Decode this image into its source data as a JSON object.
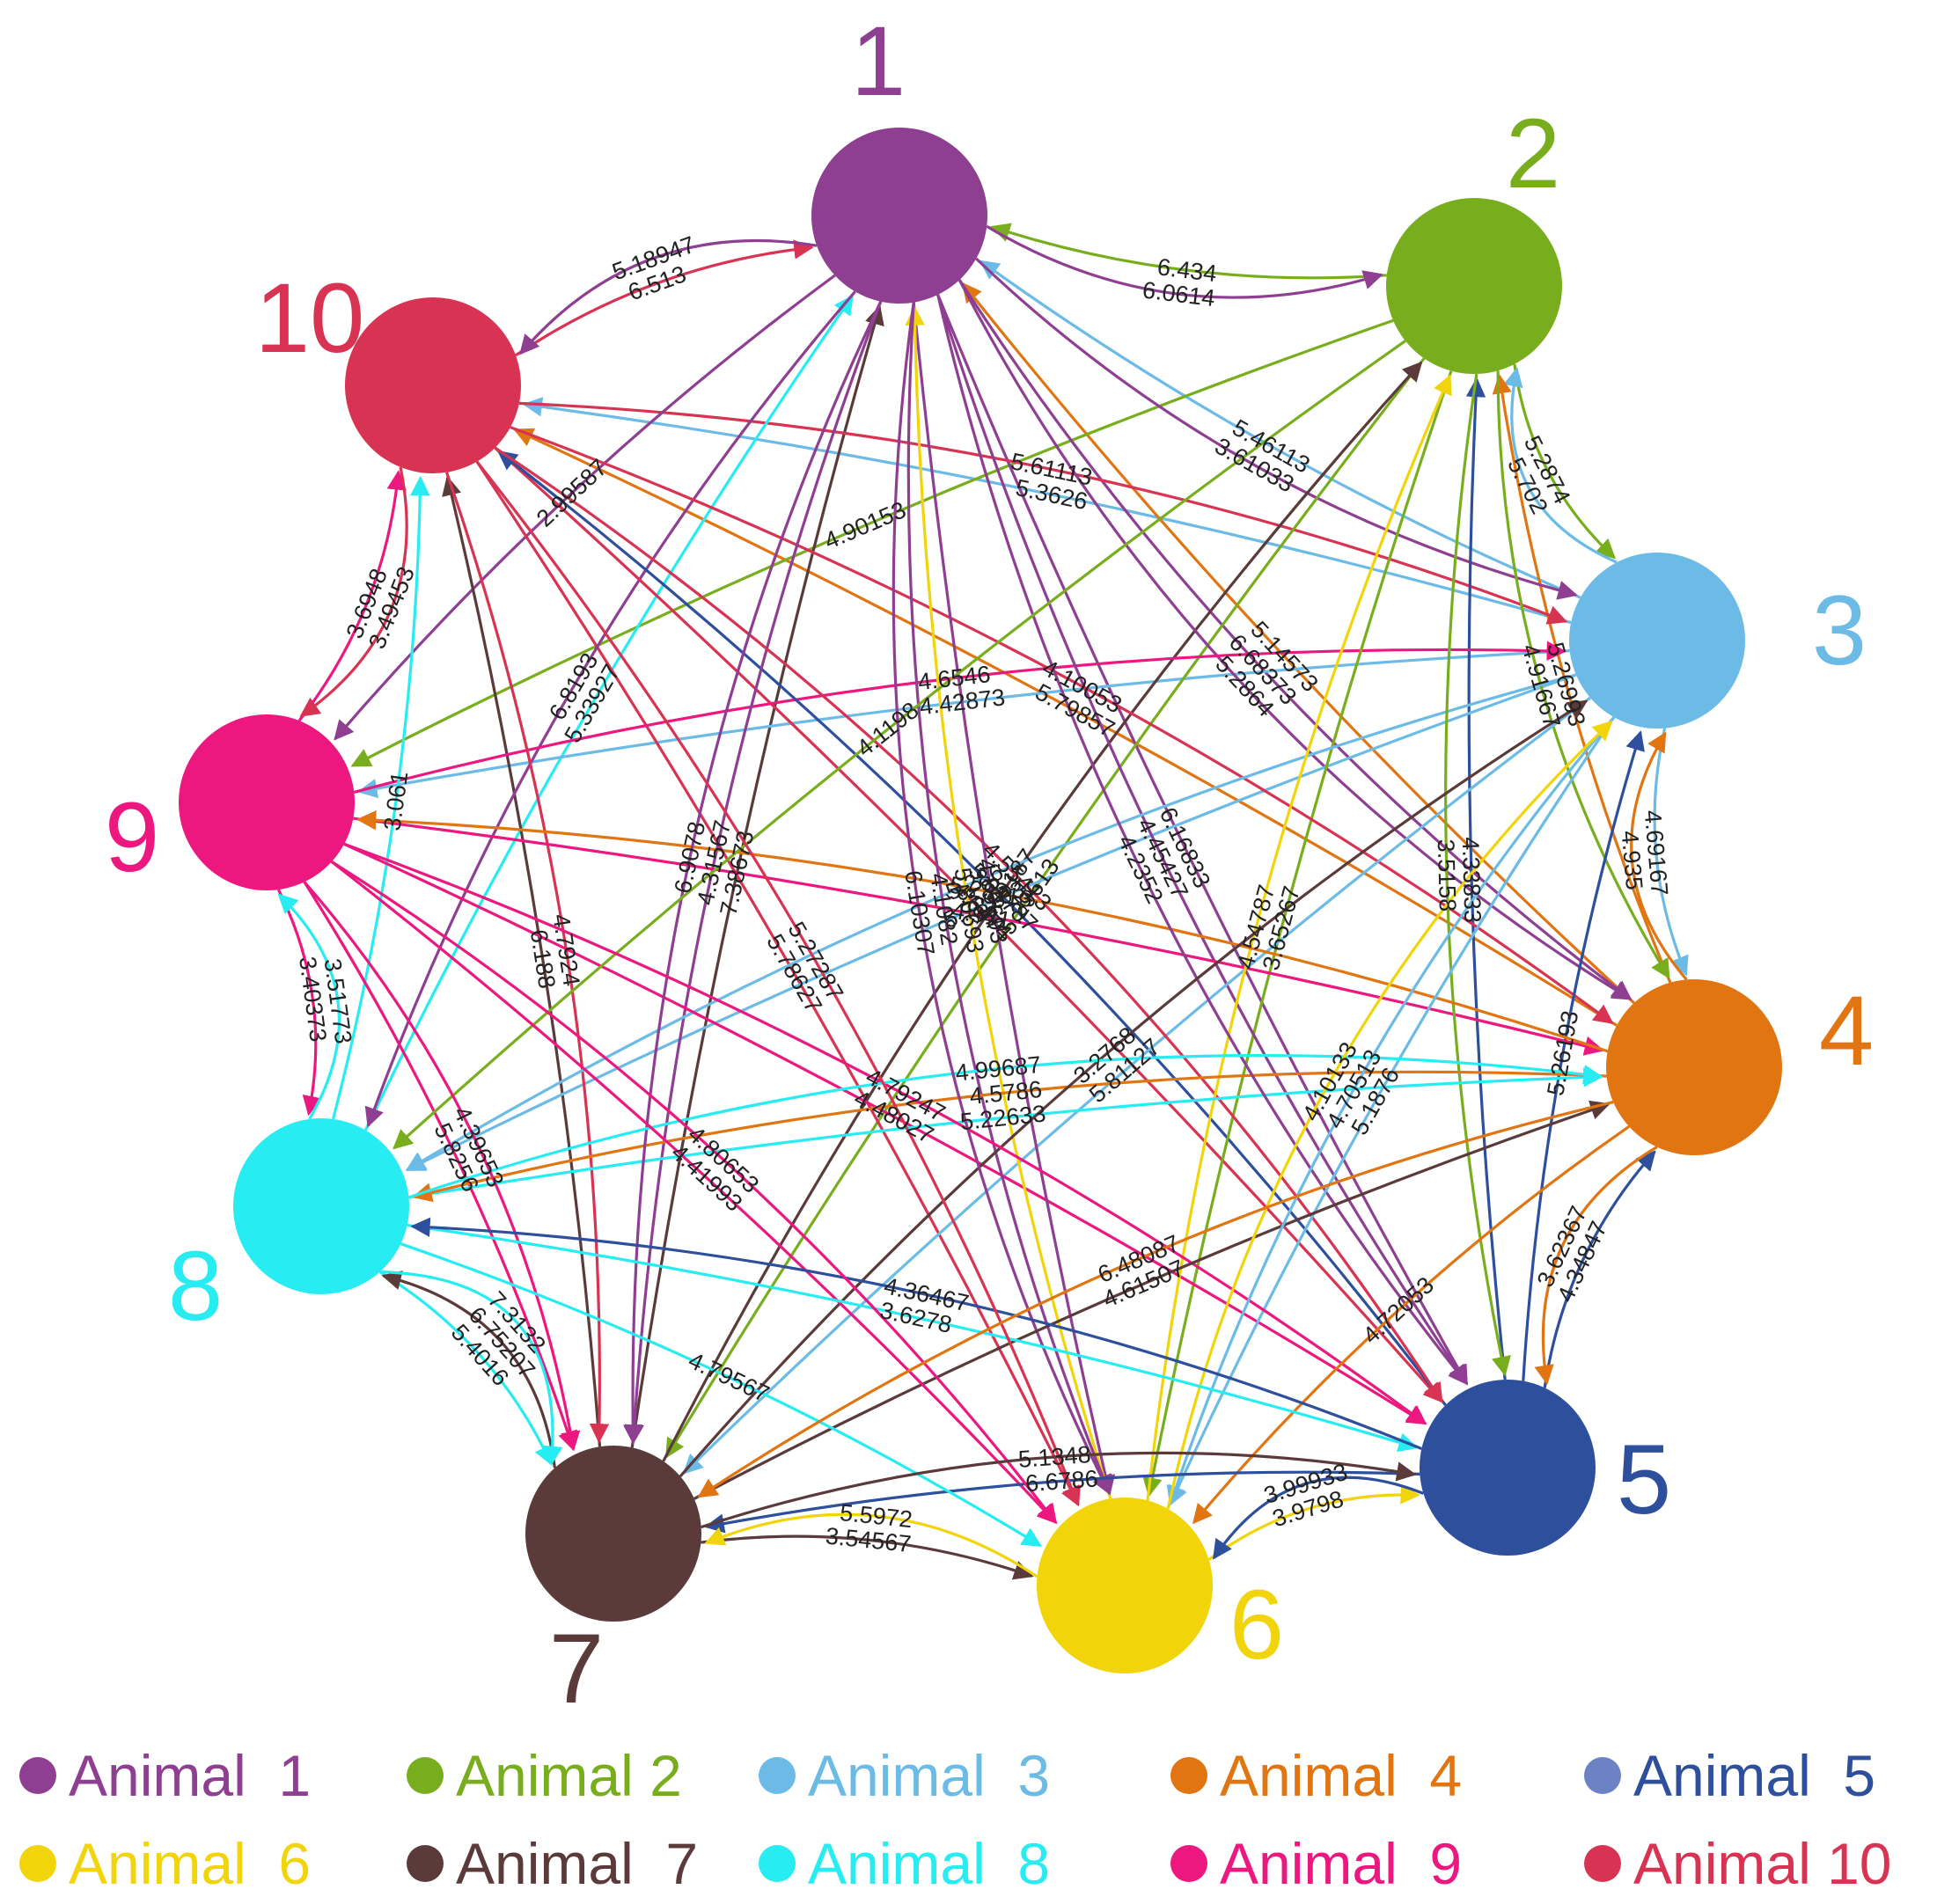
{
  "nodes": [
    {
      "id": 1,
      "label": "1",
      "color": "#8e3f91"
    },
    {
      "id": 2,
      "label": "2",
      "color": "#78ae1d"
    },
    {
      "id": 3,
      "label": "3",
      "color": "#6bbbe6"
    },
    {
      "id": 4,
      "label": "4",
      "color": "#e07512"
    },
    {
      "id": 5,
      "label": "5",
      "color": "#2d4f9c"
    },
    {
      "id": 6,
      "label": "6",
      "color": "#f1d40a"
    },
    {
      "id": 7,
      "label": "7",
      "color": "#5b3a3a"
    },
    {
      "id": 8,
      "label": "8",
      "color": "#27ecf2"
    },
    {
      "id": 9,
      "label": "9",
      "color": "#ec177f"
    },
    {
      "id": 10,
      "label": "10",
      "color": "#d83352"
    }
  ],
  "edges": [
    {
      "from": 2,
      "to": 1,
      "weight": "6.434"
    },
    {
      "from": 1,
      "to": 2,
      "weight": "6.0614"
    },
    {
      "from": 10,
      "to": 1,
      "weight": "6.513"
    },
    {
      "from": 1,
      "to": 10,
      "weight": "5.18947"
    },
    {
      "from": 3,
      "to": 10,
      "weight": "5.3626"
    },
    {
      "from": 4,
      "to": 1,
      "weight": "5.14573"
    },
    {
      "from": 3,
      "to": 1,
      "weight": "5.46113"
    },
    {
      "from": 2,
      "to": 3,
      "weight": "5.2874"
    },
    {
      "from": 3,
      "to": 2,
      "weight": "5.702"
    },
    {
      "from": 4,
      "to": 2,
      "weight": "5.26993"
    },
    {
      "from": 4,
      "to": 10,
      "weight": "5.79857"
    },
    {
      "from": 2,
      "to": 9,
      "weight": "4.90153"
    },
    {
      "from": 7,
      "to": 1,
      "weight": "7.38673"
    },
    {
      "from": 1,
      "to": 5,
      "weight": "6.16833"
    },
    {
      "from": 1,
      "to": 4,
      "weight": "6.68373"
    },
    {
      "from": 10,
      "to": 3,
      "weight": "5.61113"
    },
    {
      "from": 1,
      "to": 3,
      "weight": "3.61033"
    },
    {
      "from": 8,
      "to": 1,
      "weight": "5.33927"
    },
    {
      "from": 3,
      "to": 9,
      "weight": "4.42873"
    },
    {
      "from": 2,
      "to": 7,
      "weight": "5.29613"
    },
    {
      "from": 9,
      "to": 10,
      "weight": "3.6948"
    },
    {
      "from": 10,
      "to": 9,
      "weight": "3.49453"
    },
    {
      "from": 1,
      "to": 9,
      "weight": "2.99587"
    },
    {
      "from": 7,
      "to": 10,
      "weight": "6.188"
    },
    {
      "from": 10,
      "to": 6,
      "weight": "5.78627"
    },
    {
      "from": 1,
      "to": 8,
      "weight": "6.8193"
    },
    {
      "from": 10,
      "to": 5,
      "weight": "4.6474"
    },
    {
      "from": 7,
      "to": 2,
      "weight": "5.59187"
    },
    {
      "from": 1,
      "to": 4,
      "weight": "5.2864"
    },
    {
      "from": 5,
      "to": 2,
      "weight": "4.33833"
    },
    {
      "from": 3,
      "to": 8,
      "weight": "5.78193"
    },
    {
      "from": 9,
      "to": 3,
      "weight": "4.6546"
    },
    {
      "from": 5,
      "to": 10,
      "weight": "5.04787"
    },
    {
      "from": 2,
      "to": 6,
      "weight": "3.65267"
    },
    {
      "from": 1,
      "to": 5,
      "weight": "4.45427"
    },
    {
      "from": 10,
      "to": 4,
      "weight": "4.10053"
    },
    {
      "from": 2,
      "to": 4,
      "weight": "4.91667"
    },
    {
      "from": 3,
      "to": 4,
      "weight": "4.69167"
    },
    {
      "from": 5,
      "to": 3,
      "weight": "5.26193"
    },
    {
      "from": 4,
      "to": 3,
      "weight": "4.935"
    },
    {
      "from": 8,
      "to": 10,
      "weight": "3.061"
    },
    {
      "from": 10,
      "to": 7,
      "weight": "4.7924"
    },
    {
      "from": 1,
      "to": 7,
      "weight": "4.31567"
    },
    {
      "from": 3,
      "to": 7,
      "weight": "5.81127"
    },
    {
      "from": 10,
      "to": 5,
      "weight": "4.55413"
    },
    {
      "from": 3,
      "to": 8,
      "weight": "5.286"
    },
    {
      "from": 9,
      "to": 4,
      "weight": "4.941"
    },
    {
      "from": 9,
      "to": 5,
      "weight": "4.48027"
    },
    {
      "from": 2,
      "to": 5,
      "weight": "3.5158"
    },
    {
      "from": 6,
      "to": 2,
      "weight": "4.54787"
    },
    {
      "from": 4,
      "to": 9,
      "weight": "5.28113"
    },
    {
      "from": 9,
      "to": 8,
      "weight": "3.40373"
    },
    {
      "from": 8,
      "to": 9,
      "weight": "3.51773"
    },
    {
      "from": 9,
      "to": 7,
      "weight": "5.8256"
    },
    {
      "from": 1,
      "to": 6,
      "weight": "4.85693"
    },
    {
      "from": 6,
      "to": 1,
      "weight": "5.80693"
    },
    {
      "from": 1,
      "to": 6,
      "weight": "4.1082"
    },
    {
      "from": 8,
      "to": 4,
      "weight": "5.22633"
    },
    {
      "from": 4,
      "to": 8,
      "weight": "4.5786"
    },
    {
      "from": 1,
      "to": 5,
      "weight": "4.2352"
    },
    {
      "from": 3,
      "to": 6,
      "weight": "5.1876"
    },
    {
      "from": 7,
      "to": 3,
      "weight": "3.2768"
    },
    {
      "from": 1,
      "to": 7,
      "weight": "6.9078"
    },
    {
      "from": 2,
      "to": 8,
      "weight": "4.1198"
    },
    {
      "from": 9,
      "to": 5,
      "weight": "4.79247"
    },
    {
      "from": 8,
      "to": 4,
      "weight": "4.99687"
    },
    {
      "from": 1,
      "to": 6,
      "weight": "6.10307"
    },
    {
      "from": 7,
      "to": 4,
      "weight": "4.61507"
    },
    {
      "from": 3,
      "to": 6,
      "weight": "4.70513"
    },
    {
      "from": 6,
      "to": 3,
      "weight": "4.10133"
    },
    {
      "from": 4,
      "to": 6,
      "weight": "4.72053"
    },
    {
      "from": 5,
      "to": 4,
      "weight": "4.34847"
    },
    {
      "from": 4,
      "to": 5,
      "weight": "3.62367"
    },
    {
      "from": 9,
      "to": 7,
      "weight": "4.39653"
    },
    {
      "from": 8,
      "to": 7,
      "weight": "5.4016"
    },
    {
      "from": 9,
      "to": 6,
      "weight": "4.41993"
    },
    {
      "from": 8,
      "to": 5,
      "weight": "3.6278"
    },
    {
      "from": 5,
      "to": 8,
      "weight": "4.36467"
    },
    {
      "from": 7,
      "to": 8,
      "weight": "6.75207"
    },
    {
      "from": 8,
      "to": 7,
      "weight": "7.3132"
    },
    {
      "from": 5,
      "to": 7,
      "weight": "6.6786"
    },
    {
      "from": 8,
      "to": 6,
      "weight": "4.79567"
    },
    {
      "from": 9,
      "to": 6,
      "weight": "4.80653"
    },
    {
      "from": 10,
      "to": 6,
      "weight": "5.27287"
    },
    {
      "from": 4,
      "to": 7,
      "weight": "6.48087"
    },
    {
      "from": 7,
      "to": 5,
      "weight": "5.1348"
    },
    {
      "from": 6,
      "to": 5,
      "weight": "3.9798"
    },
    {
      "from": 5,
      "to": 6,
      "weight": "3.99933"
    },
    {
      "from": 7,
      "to": 6,
      "weight": "3.54567"
    },
    {
      "from": 6,
      "to": 7,
      "weight": "5.5972"
    }
  ],
  "legend": [
    {
      "node": 1,
      "label": "Animal  1",
      "color": "#8e3f91"
    },
    {
      "node": 2,
      "label": "Animal 2",
      "color": "#78ae1d"
    },
    {
      "node": 3,
      "label": "Animal  3",
      "color": "#6bbbe6"
    },
    {
      "node": 4,
      "label": "Animal  4",
      "color": "#e07512"
    },
    {
      "node": 5,
      "label": "Animal  5",
      "color": "#2d4f9c",
      "dot_color": "#6b82c4"
    },
    {
      "node": 6,
      "label": "Animal  6",
      "color": "#f1d40a"
    },
    {
      "node": 7,
      "label": "Animal  7",
      "color": "#5b3a3a"
    },
    {
      "node": 8,
      "label": "Animal  8",
      "color": "#27ecf2"
    },
    {
      "node": 9,
      "label": "Animal  9",
      "color": "#ec177f"
    },
    {
      "node": 10,
      "label": "Animal 10",
      "color": "#d83352"
    }
  ]
}
